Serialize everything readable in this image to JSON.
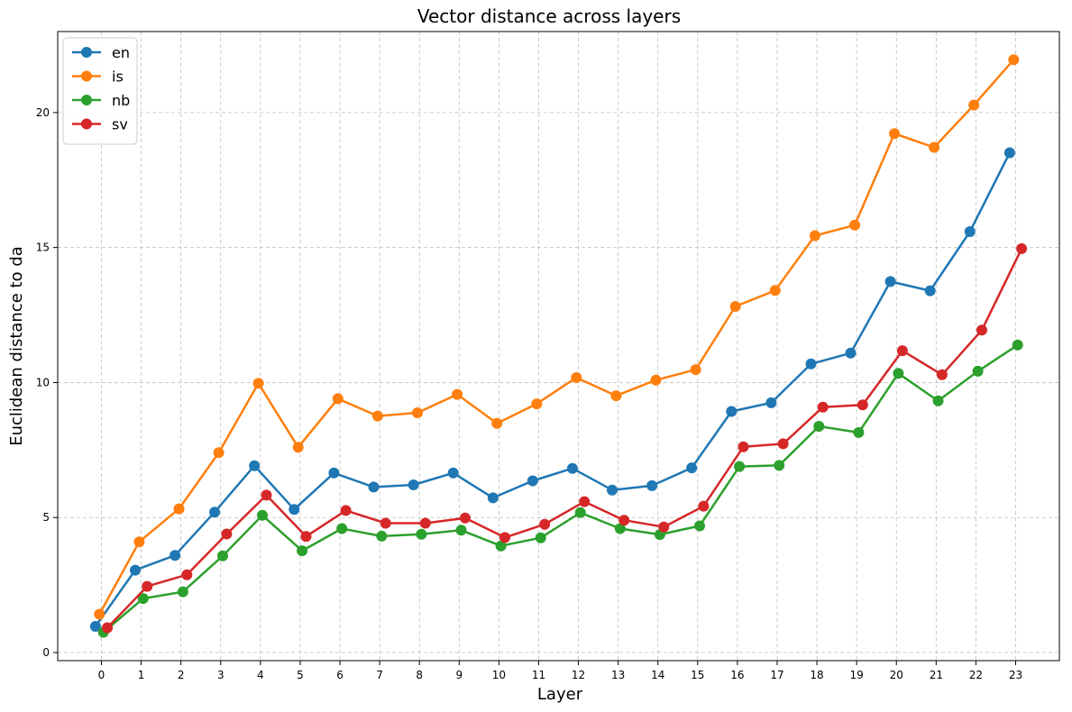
{
  "chart_data": {
    "type": "line",
    "title": "Vector distance across layers",
    "xlabel": "Layer",
    "ylabel": "Euclidean distance to da",
    "x": [
      0,
      1,
      2,
      3,
      4,
      5,
      6,
      7,
      8,
      9,
      10,
      11,
      12,
      13,
      14,
      15,
      16,
      17,
      18,
      19,
      20,
      21,
      22,
      23
    ],
    "xlim": [
      -1.1,
      24.1
    ],
    "ylim": [
      -0.3,
      23.0
    ],
    "yticks": [
      0,
      5,
      10,
      15,
      20
    ],
    "grid": true,
    "legend_position": "top-left",
    "series": [
      {
        "name": "en",
        "color": "#1f77b4",
        "offset": -0.15,
        "values": [
          0.97,
          3.05,
          3.6,
          5.2,
          6.92,
          5.3,
          6.65,
          6.13,
          6.21,
          6.65,
          5.73,
          6.36,
          6.82,
          6.02,
          6.18,
          6.84,
          8.93,
          9.25,
          10.69,
          11.09,
          13.74,
          13.4,
          15.59,
          18.51
        ]
      },
      {
        "name": "is",
        "color": "#ff7f0e",
        "offset": -0.05,
        "values": [
          1.42,
          4.1,
          5.32,
          7.4,
          9.97,
          7.6,
          9.4,
          8.76,
          8.88,
          9.56,
          8.49,
          9.21,
          10.18,
          9.51,
          10.09,
          10.48,
          12.82,
          13.41,
          15.44,
          15.83,
          19.22,
          18.71,
          20.28,
          21.96
        ]
      },
      {
        "name": "nb",
        "color": "#2ca02c",
        "offset": 0.05,
        "values": [
          0.75,
          2.0,
          2.25,
          3.58,
          5.08,
          3.77,
          4.59,
          4.31,
          4.38,
          4.53,
          3.95,
          4.25,
          5.18,
          4.59,
          4.37,
          4.69,
          6.89,
          6.93,
          8.38,
          8.15,
          10.34,
          9.32,
          10.42,
          11.39
        ]
      },
      {
        "name": "sv",
        "color": "#d62728",
        "offset": 0.15,
        "values": [
          0.92,
          2.45,
          2.88,
          4.39,
          5.83,
          4.3,
          5.26,
          4.79,
          4.79,
          4.98,
          4.26,
          4.75,
          5.59,
          4.9,
          4.65,
          5.42,
          7.62,
          7.73,
          9.09,
          9.17,
          11.18,
          10.29,
          11.94,
          14.96
        ]
      }
    ]
  }
}
